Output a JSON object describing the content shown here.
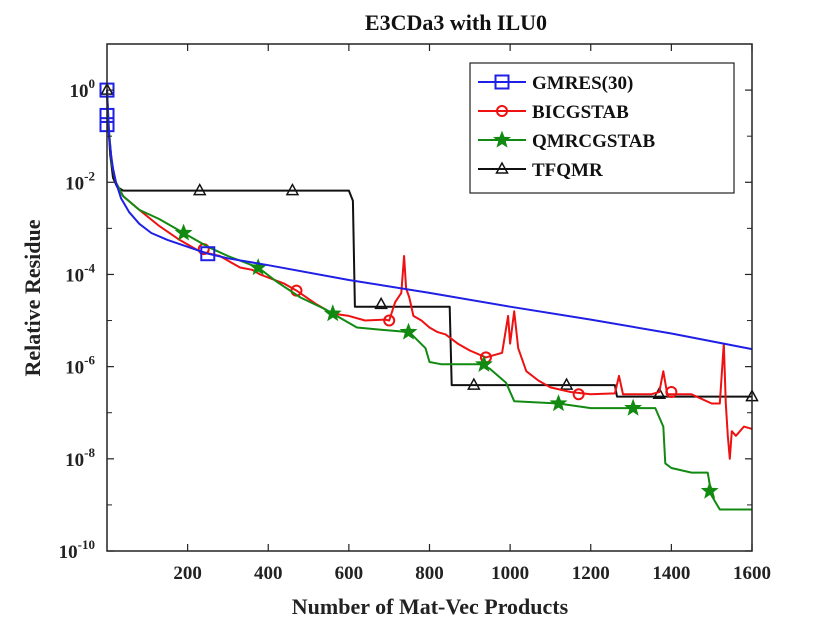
{
  "chart_data": {
    "type": "line",
    "title": "E3CDa3 with ILU0",
    "xlabel": "Number of Mat-Vec Products",
    "ylabel": "Relative Residue",
    "xlim": [
      0,
      1600
    ],
    "ylim_log10": [
      -10,
      1
    ],
    "yscale": "log",
    "grid": false,
    "legend_position": "top-right",
    "x_ticks": [
      200,
      400,
      600,
      800,
      1000,
      1200,
      1400,
      1600
    ],
    "x_tick_labels": [
      "200",
      "400",
      "600",
      "800",
      "1000",
      "1200",
      "1400",
      "1600"
    ],
    "y_ticks_log10": [
      -10,
      -8,
      -6,
      -4,
      -2,
      0
    ],
    "y_tick_bases": [
      "10",
      "10",
      "10",
      "10",
      "10",
      "10"
    ],
    "y_tick_exponents": [
      "-10",
      "-8",
      "-6",
      "-4",
      "-2",
      "0"
    ],
    "series": [
      {
        "name": "GMRES(30)",
        "color": "#1f1fe6",
        "marker": "square",
        "points": [
          [
            0,
            0
          ],
          [
            2,
            -0.5
          ],
          [
            5,
            -1.0
          ],
          [
            10,
            -1.4
          ],
          [
            15,
            -1.7
          ],
          [
            22,
            -2.0
          ],
          [
            35,
            -2.35
          ],
          [
            55,
            -2.65
          ],
          [
            80,
            -2.9
          ],
          [
            110,
            -3.1
          ],
          [
            150,
            -3.25
          ],
          [
            200,
            -3.4
          ],
          [
            250,
            -3.55
          ],
          [
            300,
            -3.65
          ],
          [
            400,
            -3.8
          ],
          [
            600,
            -4.12
          ],
          [
            800,
            -4.4
          ],
          [
            1000,
            -4.7
          ],
          [
            1200,
            -4.98
          ],
          [
            1400,
            -5.28
          ],
          [
            1600,
            -5.62
          ]
        ],
        "markers": [
          [
            0,
            0
          ],
          [
            0,
            -0.55
          ],
          [
            0,
            -0.75
          ],
          [
            250,
            -3.55
          ]
        ]
      },
      {
        "name": "BICGSTAB",
        "color": "#ee1111",
        "marker": "circle",
        "points": [
          [
            0,
            0
          ],
          [
            5,
            -0.9
          ],
          [
            12,
            -1.6
          ],
          [
            22,
            -2.0
          ],
          [
            40,
            -2.3
          ],
          [
            80,
            -2.6
          ],
          [
            130,
            -2.95
          ],
          [
            180,
            -3.25
          ],
          [
            230,
            -3.5
          ],
          [
            280,
            -3.6
          ],
          [
            300,
            -3.7
          ],
          [
            330,
            -3.85
          ],
          [
            360,
            -3.9
          ],
          [
            380,
            -4.0
          ],
          [
            440,
            -4.2
          ],
          [
            470,
            -4.35
          ],
          [
            520,
            -4.65
          ],
          [
            560,
            -4.85
          ],
          [
            600,
            -4.9
          ],
          [
            640,
            -5.0
          ],
          [
            690,
            -4.98
          ],
          [
            700,
            -5.0
          ],
          [
            715,
            -4.6
          ],
          [
            730,
            -4.4
          ],
          [
            737,
            -3.6
          ],
          [
            742,
            -4.3
          ],
          [
            750,
            -4.5
          ],
          [
            760,
            -4.9
          ],
          [
            780,
            -5.0
          ],
          [
            800,
            -5.15
          ],
          [
            820,
            -5.25
          ],
          [
            840,
            -5.3
          ],
          [
            870,
            -5.5
          ],
          [
            900,
            -5.65
          ],
          [
            940,
            -5.8
          ],
          [
            980,
            -5.7
          ],
          [
            995,
            -4.9
          ],
          [
            1000,
            -5.5
          ],
          [
            1010,
            -4.8
          ],
          [
            1020,
            -5.6
          ],
          [
            1040,
            -6.1
          ],
          [
            1070,
            -6.3
          ],
          [
            1100,
            -6.45
          ],
          [
            1150,
            -6.55
          ],
          [
            1200,
            -6.6
          ],
          [
            1260,
            -6.58
          ],
          [
            1270,
            -6.2
          ],
          [
            1280,
            -6.6
          ],
          [
            1350,
            -6.6
          ],
          [
            1370,
            -6.55
          ],
          [
            1380,
            -6.1
          ],
          [
            1390,
            -6.6
          ],
          [
            1450,
            -6.6
          ],
          [
            1500,
            -6.8
          ],
          [
            1520,
            -6.8
          ],
          [
            1530,
            -5.5
          ],
          [
            1535,
            -6.8
          ],
          [
            1540,
            -7.5
          ],
          [
            1545,
            -8.0
          ],
          [
            1550,
            -7.4
          ],
          [
            1560,
            -7.5
          ],
          [
            1580,
            -7.3
          ],
          [
            1600,
            -7.35
          ]
        ],
        "markers": [
          [
            240,
            -3.45
          ],
          [
            470,
            -4.35
          ],
          [
            700,
            -5.0
          ],
          [
            940,
            -5.8
          ],
          [
            1170,
            -6.6
          ],
          [
            1400,
            -6.55
          ]
        ]
      },
      {
        "name": "QMRCGSTAB",
        "color": "#128a12",
        "marker": "star",
        "points": [
          [
            0,
            0
          ],
          [
            5,
            -0.9
          ],
          [
            12,
            -1.6
          ],
          [
            22,
            -2.0
          ],
          [
            40,
            -2.3
          ],
          [
            80,
            -2.6
          ],
          [
            130,
            -2.8
          ],
          [
            190,
            -3.1
          ],
          [
            250,
            -3.4
          ],
          [
            300,
            -3.6
          ],
          [
            375,
            -3.85
          ],
          [
            420,
            -4.15
          ],
          [
            480,
            -4.5
          ],
          [
            540,
            -4.75
          ],
          [
            580,
            -4.95
          ],
          [
            620,
            -5.15
          ],
          [
            680,
            -5.2
          ],
          [
            750,
            -5.25
          ],
          [
            790,
            -5.6
          ],
          [
            800,
            -5.9
          ],
          [
            830,
            -5.95
          ],
          [
            930,
            -5.95
          ],
          [
            950,
            -6.05
          ],
          [
            990,
            -6.35
          ],
          [
            1010,
            -6.75
          ],
          [
            1120,
            -6.8
          ],
          [
            1200,
            -6.9
          ],
          [
            1300,
            -6.9
          ],
          [
            1360,
            -6.9
          ],
          [
            1380,
            -7.3
          ],
          [
            1385,
            -8.1
          ],
          [
            1400,
            -8.2
          ],
          [
            1450,
            -8.3
          ],
          [
            1490,
            -8.3
          ],
          [
            1500,
            -8.8
          ],
          [
            1520,
            -9.1
          ],
          [
            1600,
            -9.1
          ]
        ],
        "markers": [
          [
            190,
            -3.1
          ],
          [
            375,
            -3.85
          ],
          [
            560,
            -4.85
          ],
          [
            748,
            -5.25
          ],
          [
            935,
            -5.95
          ],
          [
            1120,
            -6.8
          ],
          [
            1305,
            -6.9
          ],
          [
            1495,
            -8.7
          ]
        ]
      },
      {
        "name": "TFQMR",
        "color": "#111111",
        "marker": "triangle",
        "points": [
          [
            0,
            0
          ],
          [
            3,
            -0.7
          ],
          [
            8,
            -1.4
          ],
          [
            15,
            -1.9
          ],
          [
            25,
            -2.1
          ],
          [
            40,
            -2.18
          ],
          [
            600,
            -2.18
          ],
          [
            610,
            -2.4
          ],
          [
            615,
            -4.7
          ],
          [
            850,
            -4.7
          ],
          [
            855,
            -6.4
          ],
          [
            1260,
            -6.4
          ],
          [
            1265,
            -6.65
          ],
          [
            1600,
            -6.65
          ]
        ],
        "markers": [
          [
            0,
            0
          ],
          [
            230,
            -2.18
          ],
          [
            460,
            -2.18
          ],
          [
            680,
            -4.65
          ],
          [
            910,
            -6.4
          ],
          [
            1140,
            -6.4
          ],
          [
            1370,
            -6.6
          ],
          [
            1600,
            -6.65
          ]
        ]
      }
    ]
  }
}
